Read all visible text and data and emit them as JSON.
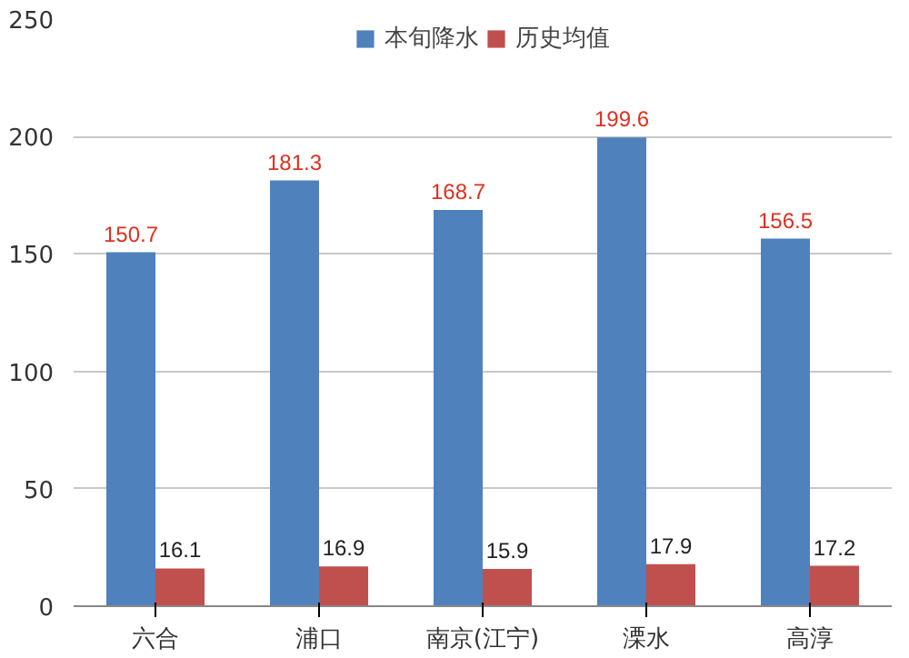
{
  "chart_data": {
    "type": "bar",
    "categories": [
      "六合",
      "浦口",
      "南京(江宁)",
      "溧水",
      "高淳"
    ],
    "series": [
      {
        "name": "本旬降水",
        "color": "#4f81bd",
        "values": [
          150.7,
          181.3,
          168.7,
          199.6,
          156.5
        ]
      },
      {
        "name": "历史均值",
        "color": "#c0504d",
        "values": [
          16.1,
          16.9,
          15.9,
          17.9,
          17.2
        ]
      }
    ],
    "ylim": [
      0,
      250
    ],
    "yticks": [
      0,
      50,
      100,
      150,
      200,
      250
    ],
    "grid": "y",
    "legend": "top",
    "data_labels": true
  }
}
